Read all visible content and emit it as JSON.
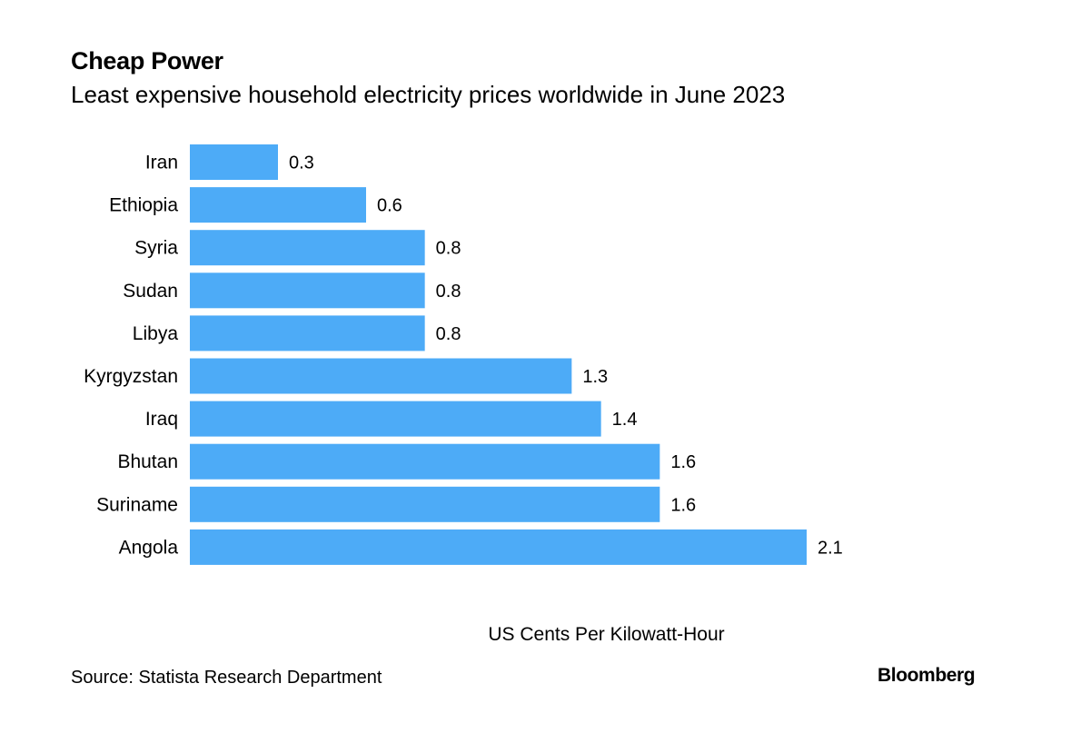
{
  "header": {
    "title": "Cheap Power",
    "subtitle": "Least expensive household electricity prices worldwide in June 2023"
  },
  "footer": {
    "source": "Source: Statista Research Department",
    "brand": "Bloomberg"
  },
  "chart_data": {
    "type": "bar",
    "orientation": "horizontal",
    "title": "Cheap Power",
    "subtitle": "Least expensive household electricity prices worldwide in June 2023",
    "xlabel": "US Cents Per Kilowatt-Hour",
    "ylabel": "",
    "categories": [
      "Iran",
      "Ethiopia",
      "Syria",
      "Sudan",
      "Libya",
      "Kyrgyzstan",
      "Iraq",
      "Bhutan",
      "Suriname",
      "Angola"
    ],
    "values": [
      0.3,
      0.6,
      0.8,
      0.8,
      0.8,
      1.3,
      1.4,
      1.6,
      1.6,
      2.1
    ],
    "value_labels": [
      "0.3",
      "0.6",
      "0.8",
      "0.8",
      "0.8",
      "1.3",
      "1.4",
      "1.6",
      "1.6",
      "2.1"
    ],
    "xlim": [
      0,
      2.1
    ],
    "grid": false,
    "legend": "none",
    "bar_color": "#4dabf7"
  }
}
